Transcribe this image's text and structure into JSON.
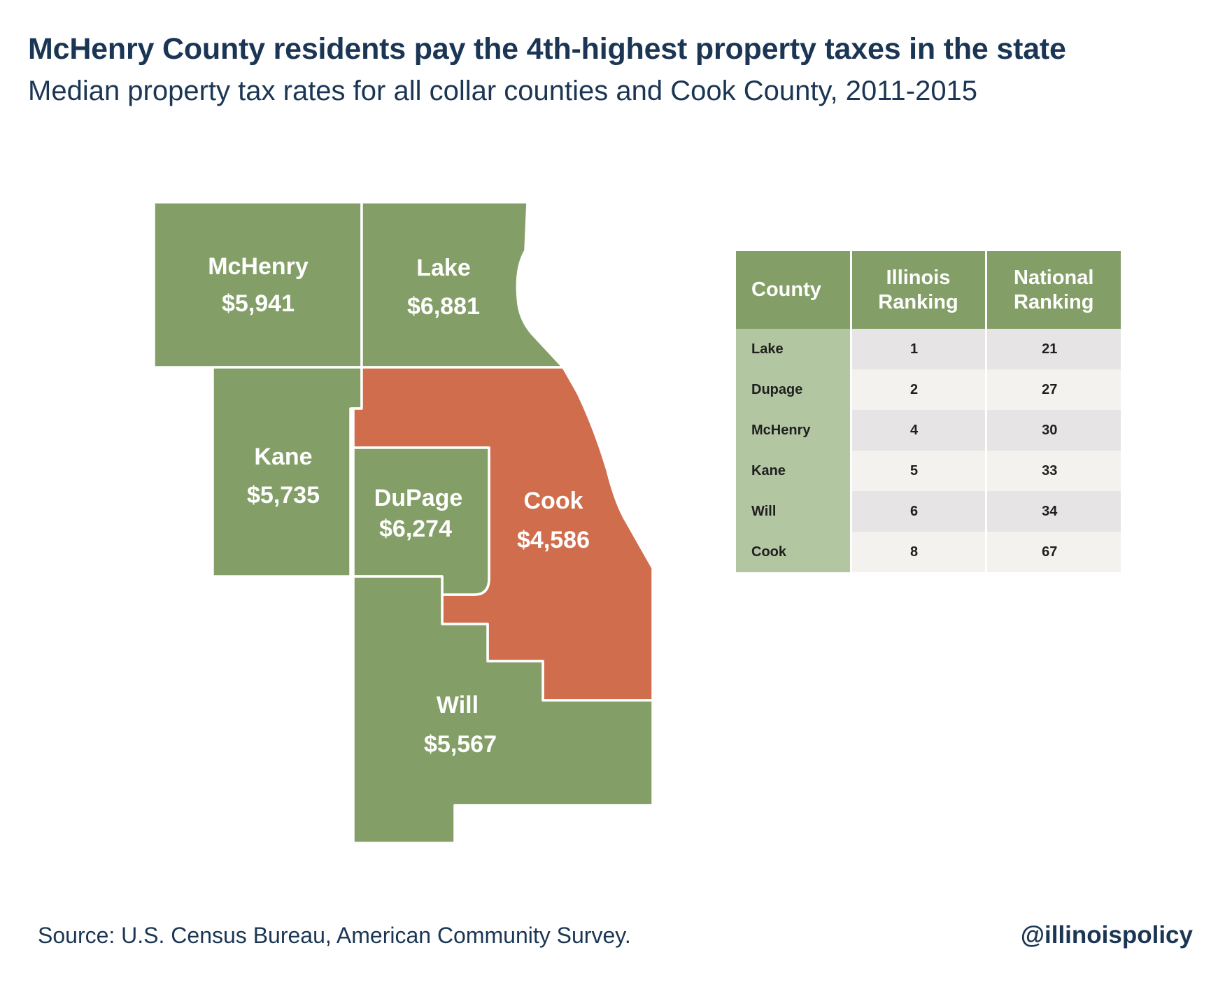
{
  "title": "McHenry County residents pay the 4th-highest property taxes in the state",
  "subtitle": "Median property tax rates for all collar counties and Cook County, 2011-2015",
  "colors": {
    "default_county": "#839f67",
    "highlight_county": "#d06d4c",
    "table_header": "#839f67",
    "table_county_column": "#b3c6a2",
    "table_row_odd": "#e6e4e4",
    "table_row_even": "#f3f2ef",
    "text_dark": "#1b3654"
  },
  "counties": [
    {
      "name": "McHenry",
      "value": "$5,941",
      "highlight": false
    },
    {
      "name": "Lake",
      "value": "$6,881",
      "highlight": false
    },
    {
      "name": "Kane",
      "value": "$5,735",
      "highlight": false
    },
    {
      "name": "DuPage",
      "value": "$6,274",
      "highlight": false
    },
    {
      "name": "Cook",
      "value": "$4,586",
      "highlight": true
    },
    {
      "name": "Will",
      "value": "$5,567",
      "highlight": false
    }
  ],
  "table": {
    "headers": [
      "County",
      "Illinois Ranking",
      "National Ranking"
    ],
    "rows": [
      {
        "county": "Lake",
        "illinois": "1",
        "national": "21"
      },
      {
        "county": "Dupage",
        "illinois": "2",
        "national": "27"
      },
      {
        "county": "McHenry",
        "illinois": "4",
        "national": "30"
      },
      {
        "county": "Kane",
        "illinois": "5",
        "national": "33"
      },
      {
        "county": "Will",
        "illinois": "6",
        "national": "34"
      },
      {
        "county": "Cook",
        "illinois": "8",
        "national": "67"
      }
    ]
  },
  "source": "Source: U.S. Census Bureau, American Community Survey.",
  "handle": "@illinoispolicy"
}
